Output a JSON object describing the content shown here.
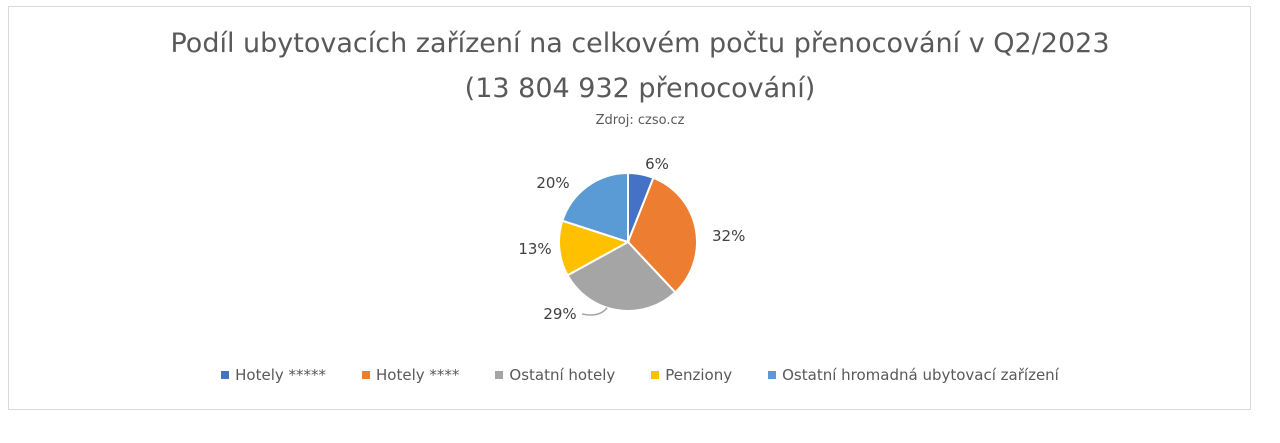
{
  "chart_data": {
    "type": "pie",
    "title": "Podíl ubytovacích zařízení na celkovém počtu přenocování v Q2/2023",
    "subtitle": "(13 804 932 přenocování)",
    "source": "Zdroj: czso.cz",
    "legend_position": "bottom",
    "slices": [
      {
        "name": "Hotely *****",
        "value": 6,
        "label": "6%",
        "color": "#4472C4"
      },
      {
        "name": "Hotely ****",
        "value": 32,
        "label": "32%",
        "color": "#ED7D31"
      },
      {
        "name": "Ostatní hotely",
        "value": 29,
        "label": "29%",
        "color": "#A5A5A5"
      },
      {
        "name": "Penziony",
        "value": 13,
        "label": "13%",
        "color": "#FFC000"
      },
      {
        "name": "Ostatní hromadná ubytovací zařízení",
        "value": 20,
        "label": "20%",
        "color": "#5B9BD5"
      }
    ]
  }
}
